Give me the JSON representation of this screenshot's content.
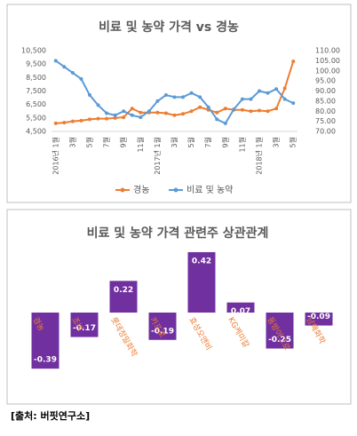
{
  "chart_data": [
    {
      "type": "line",
      "title": "비료 및 농약 가격 vs 경농",
      "categories": [
        "2016년 1월",
        null,
        "3월",
        null,
        "5월",
        null,
        "7월",
        null,
        "9월",
        null,
        "11월",
        null,
        "2017년 1월",
        null,
        "3월",
        null,
        "5월",
        null,
        "7월",
        null,
        "9월",
        null,
        "11월",
        null,
        "2018년 1월",
        null,
        "3월",
        null,
        "5월"
      ],
      "series": [
        {
          "name": "경농",
          "color": "#ed7d31",
          "axis": "y",
          "values": [
            5100,
            5150,
            5250,
            5300,
            5400,
            5450,
            5450,
            5500,
            5550,
            6200,
            5900,
            5900,
            5900,
            5850,
            5700,
            5800,
            6000,
            6300,
            6100,
            5900,
            6200,
            6100,
            6100,
            6000,
            6050,
            6000,
            6200,
            7700,
            9700
          ]
        },
        {
          "name": "비료 및 농약",
          "color": "#5b9bd5",
          "axis": "y2",
          "values": [
            105,
            102,
            99,
            96,
            88,
            83,
            79,
            78,
            80,
            78,
            77,
            80,
            85,
            88,
            87,
            87,
            89,
            87,
            82,
            76,
            74,
            81,
            86,
            86,
            90,
            89,
            91,
            86,
            84
          ]
        }
      ],
      "ylim": [
        4500,
        10500
      ],
      "yticks": [
        {
          "value": 4500,
          "label": "4,500"
        },
        {
          "value": 5500,
          "label": "5,500"
        },
        {
          "value": 6500,
          "label": "6,500"
        },
        {
          "value": 7500,
          "label": "7,500"
        },
        {
          "value": 8500,
          "label": "8,500"
        },
        {
          "value": 9500,
          "label": "9,500"
        },
        {
          "value": 10500,
          "label": "10,500"
        }
      ],
      "y2lim": [
        70,
        110
      ],
      "y2ticks": [
        {
          "value": 70,
          "label": "70.00"
        },
        {
          "value": 75,
          "label": "75.00"
        },
        {
          "value": 80,
          "label": "80.00"
        },
        {
          "value": 85,
          "label": "85.00"
        },
        {
          "value": 90,
          "label": "90.00"
        },
        {
          "value": 95,
          "label": "95.00"
        },
        {
          "value": 100,
          "label": "100.00"
        },
        {
          "value": 105,
          "label": "105.00"
        },
        {
          "value": 110,
          "label": "110.00"
        }
      ],
      "legend": "bottom"
    },
    {
      "type": "bar",
      "title": "비료 및 농약 가격 관련주 상관관계",
      "categories": [
        "경농",
        "조비",
        "롯데정밀화학",
        "카프로",
        "효성오앤비",
        "KG케미칼",
        "동방아그로",
        "남해화학"
      ],
      "values": [
        -0.39,
        -0.17,
        0.22,
        -0.19,
        0.42,
        0.07,
        -0.25,
        -0.09
      ],
      "color": "#7030a0",
      "label_color": "#ed7d31",
      "ylim": [
        -0.5,
        0.5
      ]
    }
  ],
  "source": "[출처: 버핏연구소]"
}
